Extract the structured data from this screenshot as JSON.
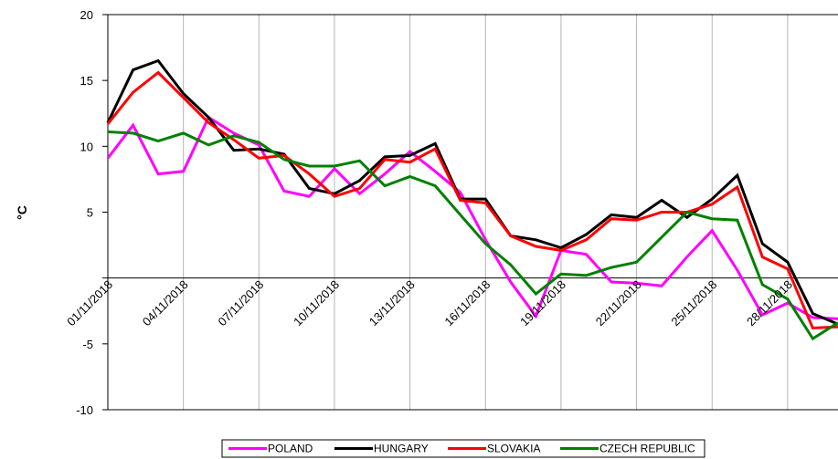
{
  "chart_data": {
    "type": "line",
    "ylabel": "°C",
    "ylim": [
      -10,
      20
    ],
    "yticks": [
      -10,
      -5,
      5,
      10,
      15,
      20
    ],
    "grid": "vertical",
    "legend_position": "bottom",
    "x": [
      "01/11/2018",
      "02/11/2018",
      "03/11/2018",
      "04/11/2018",
      "05/11/2018",
      "06/11/2018",
      "07/11/2018",
      "08/11/2018",
      "09/11/2018",
      "10/11/2018",
      "11/11/2018",
      "12/11/2018",
      "13/11/2018",
      "14/11/2018",
      "15/11/2018",
      "16/11/2018",
      "17/11/2018",
      "18/11/2018",
      "19/11/2018",
      "20/11/2018",
      "21/11/2018",
      "22/11/2018",
      "23/11/2018",
      "24/11/2018",
      "25/11/2018",
      "26/11/2018",
      "27/11/2018",
      "28/11/2018",
      "29/11/2018",
      "30/11/2018"
    ],
    "xtick_labels": [
      "01/11/2018",
      "04/11/2018",
      "07/11/2018",
      "10/11/2018",
      "13/11/2018",
      "16/11/2018",
      "19/11/2018",
      "22/11/2018",
      "25/11/2018",
      "28/11/2018"
    ],
    "series": [
      {
        "name": "POLAND",
        "color": "#ff00ff",
        "values": [
          9.1,
          11.6,
          7.9,
          8.1,
          12.2,
          11.0,
          10.1,
          6.6,
          6.2,
          8.3,
          6.4,
          7.9,
          9.6,
          8.1,
          6.5,
          2.9,
          -0.3,
          -2.9,
          2.1,
          1.8,
          -0.3,
          -0.4,
          -0.6,
          1.6,
          3.6,
          0.6,
          -2.8,
          -1.9,
          -3.0,
          -3.1
        ]
      },
      {
        "name": "HUNGARY",
        "color": "#000000",
        "values": [
          11.8,
          15.8,
          16.5,
          14.0,
          12.2,
          9.7,
          9.8,
          9.4,
          6.8,
          6.4,
          7.4,
          9.2,
          9.3,
          10.2,
          6.0,
          6.0,
          3.2,
          2.9,
          2.3,
          3.3,
          4.8,
          4.6,
          5.9,
          4.6,
          6.0,
          7.8,
          2.6,
          1.2,
          -2.7,
          -3.5
        ]
      },
      {
        "name": "SLOVAKIA",
        "color": "#ff0000",
        "values": [
          11.7,
          14.1,
          15.6,
          13.7,
          11.8,
          10.5,
          9.1,
          9.3,
          7.9,
          6.2,
          6.8,
          9.0,
          8.8,
          9.8,
          5.9,
          5.7,
          3.2,
          2.4,
          2.1,
          2.9,
          4.5,
          4.4,
          5.0,
          5.0,
          5.6,
          6.9,
          1.6,
          0.7,
          -3.8,
          -3.7
        ]
      },
      {
        "name": "CZECH REPUBLIC",
        "color": "#008000",
        "values": [
          11.1,
          11.0,
          10.4,
          11.0,
          10.1,
          10.8,
          10.3,
          9.0,
          8.5,
          8.5,
          8.9,
          7.0,
          7.7,
          7.0,
          4.8,
          2.6,
          1.0,
          -1.2,
          0.3,
          0.2,
          0.8,
          1.2,
          3.1,
          5.0,
          4.5,
          4.4,
          -0.5,
          -1.6,
          -4.6,
          -3.4
        ]
      }
    ]
  }
}
